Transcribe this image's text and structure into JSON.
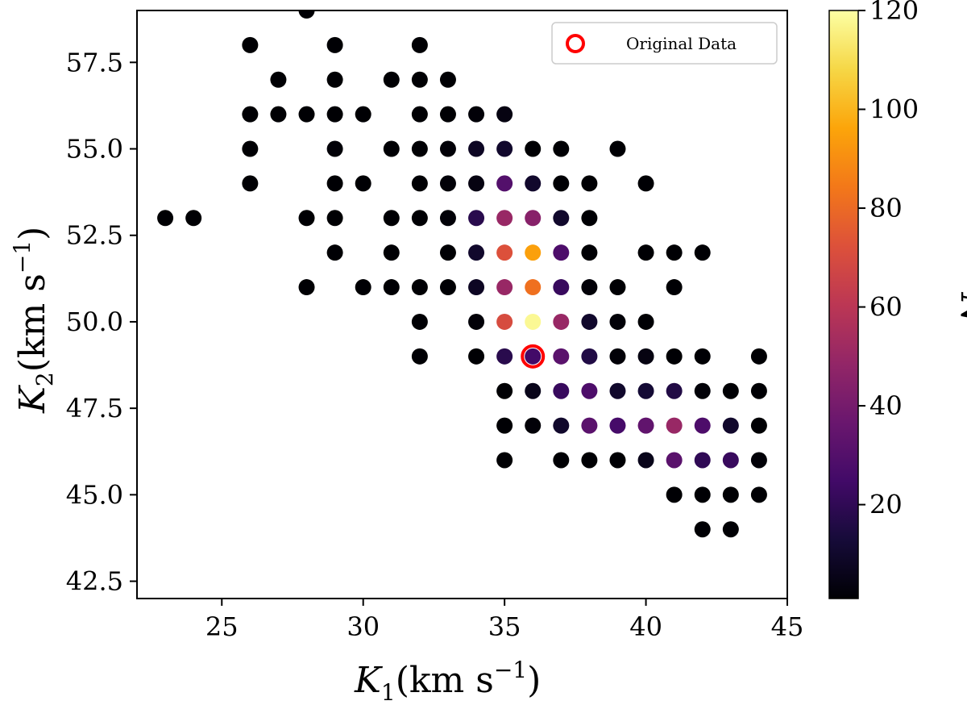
{
  "chart_data": {
    "type": "scatter",
    "title": "",
    "xlabel_symbol": "K",
    "xlabel_sub": "1",
    "xlabel_unit": "(km s",
    "xlabel_exp": "−1",
    "xlabel_close": ")",
    "ylabel_symbol": "K",
    "ylabel_sub": "2",
    "ylabel_unit": "(km s",
    "ylabel_exp": "−1",
    "ylabel_close": ")",
    "xlim": [
      22,
      45
    ],
    "ylim": [
      42,
      59
    ],
    "xticks": [
      25,
      30,
      35,
      40,
      45
    ],
    "xtick_labels": [
      "25",
      "30",
      "35",
      "40",
      "45"
    ],
    "yticks": [
      42.5,
      45.0,
      47.5,
      50.0,
      52.5,
      55.0,
      57.5
    ],
    "ytick_labels": [
      "42.5",
      "45.0",
      "47.5",
      "50.0",
      "52.5",
      "55.0",
      "57.5"
    ],
    "colorbar": {
      "label": "N",
      "range": [
        1,
        120
      ],
      "ticks": [
        20,
        40,
        60,
        80,
        100,
        120
      ],
      "tick_labels": [
        "20",
        "40",
        "60",
        "80",
        "100",
        "120"
      ],
      "colormap": "inferno"
    },
    "legend": {
      "label": "Original Data",
      "placement": "top-right",
      "marker_color": "#ff0000"
    },
    "original_point": {
      "k1": 36,
      "k2": 49
    },
    "points": [
      {
        "k1": 28,
        "k2": 59,
        "n": 1
      },
      {
        "k1": 26,
        "k2": 58,
        "n": 1
      },
      {
        "k1": 29,
        "k2": 58,
        "n": 1
      },
      {
        "k1": 32,
        "k2": 58,
        "n": 1
      },
      {
        "k1": 27,
        "k2": 57,
        "n": 1
      },
      {
        "k1": 29,
        "k2": 57,
        "n": 1
      },
      {
        "k1": 31,
        "k2": 57,
        "n": 1
      },
      {
        "k1": 32,
        "k2": 57,
        "n": 1
      },
      {
        "k1": 33,
        "k2": 57,
        "n": 1
      },
      {
        "k1": 26,
        "k2": 56,
        "n": 1
      },
      {
        "k1": 27,
        "k2": 56,
        "n": 1
      },
      {
        "k1": 28,
        "k2": 56,
        "n": 1
      },
      {
        "k1": 29,
        "k2": 56,
        "n": 1
      },
      {
        "k1": 30,
        "k2": 56,
        "n": 1
      },
      {
        "k1": 32,
        "k2": 56,
        "n": 1
      },
      {
        "k1": 33,
        "k2": 56,
        "n": 1
      },
      {
        "k1": 34,
        "k2": 56,
        "n": 2
      },
      {
        "k1": 35,
        "k2": 56,
        "n": 4
      },
      {
        "k1": 26,
        "k2": 55,
        "n": 1
      },
      {
        "k1": 29,
        "k2": 55,
        "n": 2
      },
      {
        "k1": 31,
        "k2": 55,
        "n": 1
      },
      {
        "k1": 32,
        "k2": 55,
        "n": 1
      },
      {
        "k1": 33,
        "k2": 55,
        "n": 2
      },
      {
        "k1": 34,
        "k2": 55,
        "n": 8
      },
      {
        "k1": 35,
        "k2": 55,
        "n": 10
      },
      {
        "k1": 36,
        "k2": 55,
        "n": 1
      },
      {
        "k1": 37,
        "k2": 55,
        "n": 1
      },
      {
        "k1": 39,
        "k2": 55,
        "n": 1
      },
      {
        "k1": 26,
        "k2": 54,
        "n": 1
      },
      {
        "k1": 29,
        "k2": 54,
        "n": 1
      },
      {
        "k1": 30,
        "k2": 54,
        "n": 1
      },
      {
        "k1": 32,
        "k2": 54,
        "n": 1
      },
      {
        "k1": 33,
        "k2": 54,
        "n": 2
      },
      {
        "k1": 34,
        "k2": 54,
        "n": 4
      },
      {
        "k1": 35,
        "k2": 54,
        "n": 30
      },
      {
        "k1": 36,
        "k2": 54,
        "n": 10
      },
      {
        "k1": 37,
        "k2": 54,
        "n": 1
      },
      {
        "k1": 38,
        "k2": 54,
        "n": 1
      },
      {
        "k1": 40,
        "k2": 54,
        "n": 1
      },
      {
        "k1": 23,
        "k2": 53,
        "n": 1
      },
      {
        "k1": 24,
        "k2": 53,
        "n": 1
      },
      {
        "k1": 28,
        "k2": 53,
        "n": 1
      },
      {
        "k1": 29,
        "k2": 53,
        "n": 1
      },
      {
        "k1": 31,
        "k2": 53,
        "n": 1
      },
      {
        "k1": 32,
        "k2": 53,
        "n": 1
      },
      {
        "k1": 33,
        "k2": 53,
        "n": 2
      },
      {
        "k1": 34,
        "k2": 53,
        "n": 18
      },
      {
        "k1": 35,
        "k2": 53,
        "n": 50
      },
      {
        "k1": 36,
        "k2": 53,
        "n": 45
      },
      {
        "k1": 37,
        "k2": 53,
        "n": 10
      },
      {
        "k1": 38,
        "k2": 53,
        "n": 1
      },
      {
        "k1": 29,
        "k2": 52,
        "n": 1
      },
      {
        "k1": 31,
        "k2": 52,
        "n": 1
      },
      {
        "k1": 33,
        "k2": 52,
        "n": 1
      },
      {
        "k1": 34,
        "k2": 52,
        "n": 10
      },
      {
        "k1": 35,
        "k2": 52,
        "n": 72
      },
      {
        "k1": 36,
        "k2": 52,
        "n": 95
      },
      {
        "k1": 37,
        "k2": 52,
        "n": 28
      },
      {
        "k1": 38,
        "k2": 52,
        "n": 1
      },
      {
        "k1": 40,
        "k2": 52,
        "n": 1
      },
      {
        "k1": 41,
        "k2": 52,
        "n": 1
      },
      {
        "k1": 42,
        "k2": 52,
        "n": 1
      },
      {
        "k1": 28,
        "k2": 51,
        "n": 1
      },
      {
        "k1": 30,
        "k2": 51,
        "n": 1
      },
      {
        "k1": 31,
        "k2": 51,
        "n": 1
      },
      {
        "k1": 32,
        "k2": 51,
        "n": 1
      },
      {
        "k1": 33,
        "k2": 51,
        "n": 1
      },
      {
        "k1": 34,
        "k2": 51,
        "n": 8
      },
      {
        "k1": 35,
        "k2": 51,
        "n": 50
      },
      {
        "k1": 36,
        "k2": 51,
        "n": 82
      },
      {
        "k1": 37,
        "k2": 51,
        "n": 22
      },
      {
        "k1": 38,
        "k2": 51,
        "n": 2
      },
      {
        "k1": 39,
        "k2": 51,
        "n": 1
      },
      {
        "k1": 41,
        "k2": 51,
        "n": 1
      },
      {
        "k1": 32,
        "k2": 50,
        "n": 1
      },
      {
        "k1": 34,
        "k2": 50,
        "n": 2
      },
      {
        "k1": 35,
        "k2": 50,
        "n": 70
      },
      {
        "k1": 36,
        "k2": 50,
        "n": 118
      },
      {
        "k1": 37,
        "k2": 50,
        "n": 50
      },
      {
        "k1": 38,
        "k2": 50,
        "n": 10
      },
      {
        "k1": 39,
        "k2": 50,
        "n": 2
      },
      {
        "k1": 40,
        "k2": 50,
        "n": 1
      },
      {
        "k1": 32,
        "k2": 49,
        "n": 1
      },
      {
        "k1": 34,
        "k2": 49,
        "n": 1
      },
      {
        "k1": 35,
        "k2": 49,
        "n": 18
      },
      {
        "k1": 36,
        "k2": 49,
        "n": 25
      },
      {
        "k1": 37,
        "k2": 49,
        "n": 32
      },
      {
        "k1": 38,
        "k2": 49,
        "n": 16
      },
      {
        "k1": 39,
        "k2": 49,
        "n": 2
      },
      {
        "k1": 40,
        "k2": 49,
        "n": 4
      },
      {
        "k1": 41,
        "k2": 49,
        "n": 1
      },
      {
        "k1": 42,
        "k2": 49,
        "n": 1
      },
      {
        "k1": 44,
        "k2": 49,
        "n": 1
      },
      {
        "k1": 35,
        "k2": 48,
        "n": 1
      },
      {
        "k1": 36,
        "k2": 48,
        "n": 6
      },
      {
        "k1": 37,
        "k2": 48,
        "n": 22
      },
      {
        "k1": 38,
        "k2": 48,
        "n": 28
      },
      {
        "k1": 39,
        "k2": 48,
        "n": 10
      },
      {
        "k1": 40,
        "k2": 48,
        "n": 12
      },
      {
        "k1": 41,
        "k2": 48,
        "n": 16
      },
      {
        "k1": 42,
        "k2": 48,
        "n": 2
      },
      {
        "k1": 43,
        "k2": 48,
        "n": 1
      },
      {
        "k1": 44,
        "k2": 48,
        "n": 1
      },
      {
        "k1": 35,
        "k2": 47,
        "n": 1
      },
      {
        "k1": 36,
        "k2": 47,
        "n": 2
      },
      {
        "k1": 37,
        "k2": 47,
        "n": 10
      },
      {
        "k1": 38,
        "k2": 47,
        "n": 32
      },
      {
        "k1": 39,
        "k2": 47,
        "n": 26
      },
      {
        "k1": 40,
        "k2": 47,
        "n": 34
      },
      {
        "k1": 41,
        "k2": 47,
        "n": 50
      },
      {
        "k1": 42,
        "k2": 47,
        "n": 28
      },
      {
        "k1": 43,
        "k2": 47,
        "n": 10
      },
      {
        "k1": 44,
        "k2": 47,
        "n": 1
      },
      {
        "k1": 35,
        "k2": 46,
        "n": 1
      },
      {
        "k1": 37,
        "k2": 46,
        "n": 1
      },
      {
        "k1": 38,
        "k2": 46,
        "n": 1
      },
      {
        "k1": 39,
        "k2": 46,
        "n": 1
      },
      {
        "k1": 40,
        "k2": 46,
        "n": 6
      },
      {
        "k1": 41,
        "k2": 46,
        "n": 32
      },
      {
        "k1": 42,
        "k2": 46,
        "n": 20
      },
      {
        "k1": 43,
        "k2": 46,
        "n": 22
      },
      {
        "k1": 44,
        "k2": 46,
        "n": 2
      },
      {
        "k1": 41,
        "k2": 45,
        "n": 1
      },
      {
        "k1": 42,
        "k2": 45,
        "n": 1
      },
      {
        "k1": 43,
        "k2": 45,
        "n": 1
      },
      {
        "k1": 44,
        "k2": 45,
        "n": 1
      },
      {
        "k1": 42,
        "k2": 44,
        "n": 1
      },
      {
        "k1": 43,
        "k2": 44,
        "n": 1
      }
    ]
  }
}
